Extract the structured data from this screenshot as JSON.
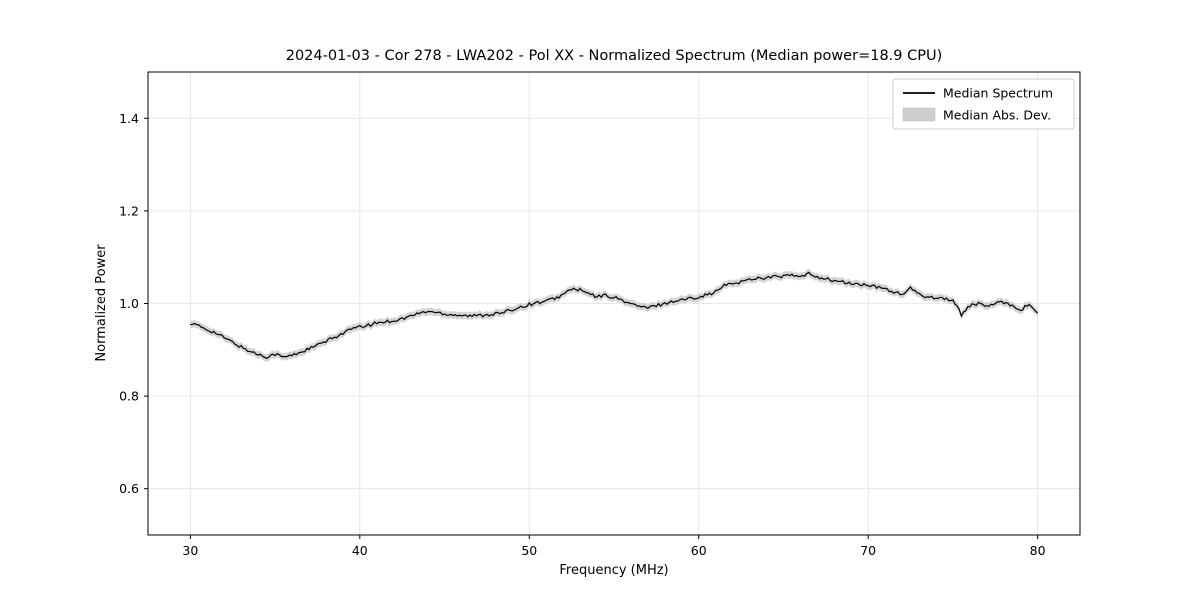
{
  "chart_data": {
    "type": "line",
    "title": "2024-01-03 - Cor 278 - LWA202 - Pol XX - Normalized Spectrum (Median power=18.9 CPU)",
    "xlabel": "Frequency (MHz)",
    "ylabel": "Normalized Power",
    "xlim": [
      27.5,
      82.5
    ],
    "ylim": [
      0.5,
      1.5
    ],
    "xticks": [
      30,
      40,
      50,
      60,
      70,
      80
    ],
    "yticks": [
      0.6,
      0.8,
      1.0,
      1.2,
      1.4
    ],
    "grid": true,
    "line_color": "#000000",
    "band_color": "#c6c6c6",
    "grid_color": "#e2e2e2",
    "legend": {
      "position": "upper right",
      "entries": [
        {
          "label": "Median Spectrum",
          "type": "line",
          "color": "#000000"
        },
        {
          "label": "Median Abs. Dev.",
          "type": "band",
          "color": "#c6c6c6"
        }
      ]
    },
    "band": {
      "name": "Median Abs. Dev.",
      "half_width": 0.008
    },
    "noise_amplitude": 0.0035,
    "series": [
      {
        "name": "Median Spectrum",
        "x": [
          30,
          30.5,
          31,
          31.5,
          32,
          32.5,
          33,
          33.5,
          34,
          34.5,
          35,
          35.5,
          36,
          36.5,
          37,
          37.5,
          38,
          38.5,
          39,
          39.5,
          40,
          40.5,
          41,
          41.5,
          42,
          42.5,
          43,
          43.5,
          44,
          44.5,
          45,
          45.5,
          46,
          46.5,
          47,
          47.5,
          48,
          48.5,
          49,
          49.5,
          50,
          50.5,
          51,
          51.5,
          52,
          52.5,
          53,
          53.5,
          54,
          54.5,
          55,
          55.5,
          56,
          56.5,
          57,
          57.5,
          58,
          58.5,
          59,
          59.5,
          60,
          60.5,
          61,
          61.5,
          62,
          62.5,
          63,
          63.5,
          64,
          64.5,
          65,
          65.5,
          66,
          66.5,
          67,
          67.5,
          68,
          68.5,
          69,
          69.5,
          70,
          70.5,
          71,
          71.5,
          72,
          72.5,
          73,
          73.5,
          74,
          74.5,
          75,
          75.5,
          76,
          76.5,
          77,
          77.5,
          78,
          78.5,
          79,
          79.5,
          80
        ],
        "y": [
          0.958,
          0.951,
          0.944,
          0.936,
          0.926,
          0.916,
          0.906,
          0.897,
          0.89,
          0.885,
          0.891,
          0.884,
          0.888,
          0.895,
          0.902,
          0.91,
          0.918,
          0.927,
          0.936,
          0.945,
          0.949,
          0.953,
          0.958,
          0.961,
          0.963,
          0.967,
          0.973,
          0.979,
          0.983,
          0.981,
          0.978,
          0.976,
          0.975,
          0.973,
          0.974,
          0.976,
          0.978,
          0.98,
          0.987,
          0.993,
          0.998,
          1.002,
          1.005,
          1.011,
          1.019,
          1.032,
          1.029,
          1.021,
          1.014,
          1.018,
          1.013,
          1.007,
          0.999,
          0.994,
          0.99,
          0.996,
          1.0,
          1.005,
          1.008,
          1.011,
          1.015,
          1.019,
          1.025,
          1.039,
          1.043,
          1.047,
          1.052,
          1.055,
          1.056,
          1.058,
          1.059,
          1.061,
          1.057,
          1.064,
          1.058,
          1.053,
          1.049,
          1.046,
          1.043,
          1.041,
          1.039,
          1.035,
          1.032,
          1.025,
          1.019,
          1.033,
          1.019,
          1.015,
          1.013,
          1.011,
          1.007,
          0.976,
          0.996,
          0.999,
          0.995,
          0.999,
          1.003,
          0.996,
          0.986,
          0.999,
          0.979
        ]
      }
    ]
  }
}
